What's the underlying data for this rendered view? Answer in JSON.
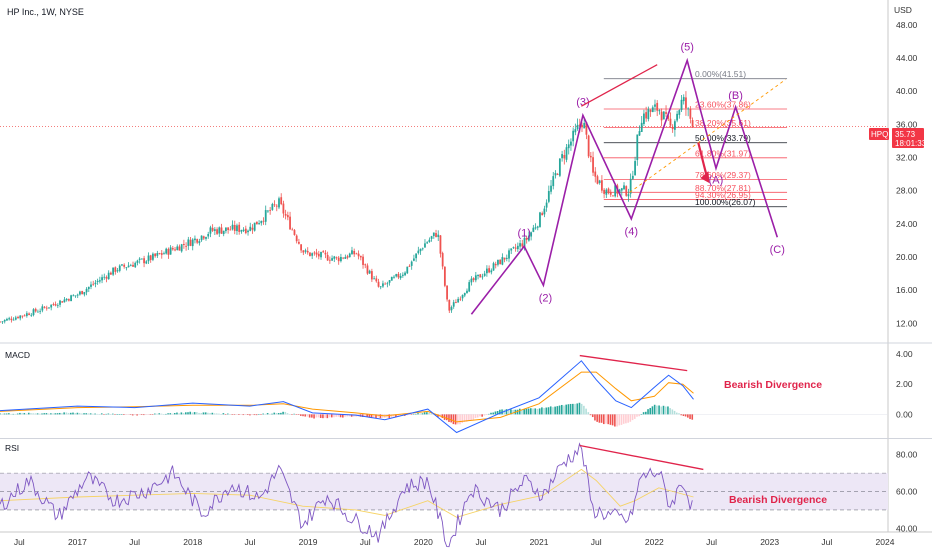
{
  "header": {
    "title": "HP Inc., 1W, NYSE",
    "currency": "USD"
  },
  "price_tag": {
    "symbol": "HPQ",
    "price": "35.73",
    "countdown": "18:01:33",
    "color": "#f23645"
  },
  "x_axis_labels": [
    "Jul",
    "2017",
    "Jul",
    "2018",
    "Jul",
    "2019",
    "Jul",
    "2020",
    "Jul",
    "2021",
    "Jul",
    "2022",
    "Jul",
    "2023",
    "Jul",
    "2024"
  ],
  "colors": {
    "up": "#26a69a",
    "down": "#ef5350",
    "wave": "#9b1fa8",
    "fib": "#f7525f",
    "macd_line": "#2962ff",
    "signal_line": "#ff9800",
    "rsi_line": "#7e57c2",
    "rsi_band": "#ede7f6",
    "divergence": "#e0244b"
  },
  "chart_data": [
    {
      "type": "candlestick",
      "title": "HP Inc., 1W, NYSE",
      "ylabel": "USD",
      "y_ticks": [
        12,
        16,
        20,
        24,
        28,
        32,
        36,
        40,
        44,
        48
      ],
      "y_tick_labels": [
        "12.00",
        "16.00",
        "20.00",
        "24.00",
        "28.00",
        "32.00",
        "36.00",
        "40.00",
        "44.00",
        "48.00"
      ],
      "ylim": [
        10,
        51
      ],
      "x_range": [
        "2016-05",
        "2024-01"
      ],
      "price_path": [
        [
          "2016-05-02",
          12.2
        ],
        [
          "2016-09-01",
          13.6
        ],
        [
          "2017-01-02",
          15.5
        ],
        [
          "2017-05-01",
          18.5
        ],
        [
          "2017-09-01",
          20.0
        ],
        [
          "2018-01-02",
          22.0
        ],
        [
          "2018-03-01",
          23.2
        ],
        [
          "2018-07-02",
          23.5
        ],
        [
          "2018-10-01",
          26.5
        ],
        [
          "2018-12-20",
          20.5
        ],
        [
          "2019-04-01",
          19.8
        ],
        [
          "2019-06-03",
          20.5
        ],
        [
          "2019-08-15",
          16.2
        ],
        [
          "2019-11-01",
          18.2
        ],
        [
          "2020-01-02",
          21.5
        ],
        [
          "2020-02-15",
          23.0
        ],
        [
          "2020-03-20",
          13.5
        ],
        [
          "2020-06-01",
          17.0
        ],
        [
          "2020-09-01",
          19.5
        ],
        [
          "2020-11-20",
          22.0
        ],
        [
          "2021-01-01",
          24.5
        ],
        [
          "2021-03-15",
          32.0
        ],
        [
          "2021-05-20",
          36.6
        ],
        [
          "2021-06-20",
          30.0
        ],
        [
          "2021-08-01",
          28.0
        ],
        [
          "2021-10-15",
          28.0
        ],
        [
          "2021-11-20",
          37.0
        ],
        [
          "2022-01-15",
          38.0
        ],
        [
          "2022-02-20",
          35.5
        ],
        [
          "2022-04-01",
          39.0
        ],
        [
          "2022-05-05",
          35.73
        ]
      ],
      "last_price": 35.73,
      "fib_levels": [
        {
          "ratio": "0.00%",
          "value": 41.51,
          "label": "0.00%(41.51)"
        },
        {
          "ratio": "23.60%",
          "value": 37.86,
          "label": "23.60%(37.86)"
        },
        {
          "ratio": "38.20%",
          "value": 35.61,
          "label": "38.20%(35.61)"
        },
        {
          "ratio": "50.00%",
          "value": 33.79,
          "label": "50.00%(33.79)"
        },
        {
          "ratio": "61.80%",
          "value": 31.97,
          "label": "61.80%(31.97)"
        },
        {
          "ratio": "78.60%",
          "value": 29.37,
          "label": "78.60%(29.37)"
        },
        {
          "ratio": "88.70%",
          "value": 27.81,
          "label": "88.70%(27.81)"
        },
        {
          "ratio": "94.30%",
          "value": 26.95,
          "label": "94.30%(26.95)"
        },
        {
          "ratio": "100.00%",
          "value": 26.07,
          "label": "100.00%(26.07)"
        }
      ],
      "elliott_waves": [
        {
          "label": "(1)",
          "date": "2020-11-15",
          "price": 21.3
        },
        {
          "label": "(2)",
          "date": "2021-01-15",
          "price": 16.6
        },
        {
          "label": "(3)",
          "date": "2021-05-20",
          "price": 37.1
        },
        {
          "label": "(4)",
          "date": "2021-10-20",
          "price": 24.6
        },
        {
          "label": "(5)",
          "date": "2022-04-15",
          "price": 43.7
        },
        {
          "label": "(A)",
          "date": "2022-07-15",
          "price": 30.7
        },
        {
          "label": "(B)",
          "date": "2022-09-15",
          "price": 38.1
        },
        {
          "label": "(C)",
          "date": "2023-01-25",
          "price": 22.4
        }
      ],
      "wave_path_start": {
        "date": "2020-06-01",
        "price": 13.1
      }
    },
    {
      "type": "line",
      "title": "MACD",
      "y_ticks": [
        0,
        2,
        4
      ],
      "y_tick_labels": [
        "0.00",
        "2.00",
        "4.00"
      ],
      "ylim": [
        -1.5,
        4.6
      ],
      "series": [
        {
          "points": [
            [
              "2016-05-01",
              0.25
            ],
            [
              "2017-01-01",
              0.55
            ],
            [
              "2017-07-01",
              0.45
            ],
            [
              "2018-01-01",
              0.75
            ],
            [
              "2018-07-01",
              0.55
            ],
            [
              "2018-10-15",
              0.85
            ],
            [
              "2019-01-15",
              0.1
            ],
            [
              "2019-06-01",
              -0.05
            ],
            [
              "2019-09-01",
              -0.35
            ],
            [
              "2020-01-15",
              0.35
            ],
            [
              "2020-04-15",
              -1.2
            ],
            [
              "2020-09-01",
              0.1
            ],
            [
              "2021-01-01",
              1.1
            ],
            [
              "2021-05-15",
              3.55
            ],
            [
              "2021-07-01",
              2.3
            ],
            [
              "2021-09-01",
              0.9
            ],
            [
              "2021-10-20",
              0.45
            ],
            [
              "2022-01-01",
              1.8
            ],
            [
              "2022-02-15",
              2.6
            ],
            [
              "2022-04-01",
              1.9
            ],
            [
              "2022-05-05",
              1.0
            ]
          ]
        },
        {
          "points": [
            [
              "2016-05-01",
              0.2
            ],
            [
              "2017-01-01",
              0.45
            ],
            [
              "2017-07-01",
              0.5
            ],
            [
              "2018-01-01",
              0.6
            ],
            [
              "2018-07-01",
              0.6
            ],
            [
              "2018-10-15",
              0.7
            ],
            [
              "2019-01-15",
              0.35
            ],
            [
              "2019-06-01",
              0.1
            ],
            [
              "2019-09-01",
              -0.1
            ],
            [
              "2020-01-15",
              0.2
            ],
            [
              "2020-04-15",
              -0.5
            ],
            [
              "2020-09-01",
              -0.2
            ],
            [
              "2021-01-01",
              0.7
            ],
            [
              "2021-05-15",
              2.8
            ],
            [
              "2021-07-01",
              2.8
            ],
            [
              "2021-09-01",
              1.7
            ],
            [
              "2021-10-20",
              0.9
            ],
            [
              "2022-01-01",
              1.2
            ],
            [
              "2022-02-15",
              2.1
            ],
            [
              "2022-04-01",
              2.0
            ],
            [
              "2022-05-05",
              1.4
            ]
          ]
        }
      ],
      "annotation": "Bearish Divergence"
    },
    {
      "type": "line",
      "title": "RSI",
      "y_ticks": [
        40,
        60,
        80
      ],
      "y_tick_labels": [
        "40.00",
        "60.00",
        "80.00"
      ],
      "ylim": [
        38,
        88
      ],
      "band": [
        50,
        70
      ],
      "series": [
        {
          "points": [
            [
              "2016-05-01",
              52
            ],
            [
              "2016-08-01",
              66
            ],
            [
              "2016-11-01",
              46
            ],
            [
              "2017-02-01",
              68
            ],
            [
              "2017-05-01",
              55
            ],
            [
              "2017-08-01",
              60
            ],
            [
              "2017-11-01",
              70
            ],
            [
              "2018-02-01",
              48
            ],
            [
              "2018-05-01",
              64
            ],
            [
              "2018-08-01",
              56
            ],
            [
              "2018-10-01",
              72
            ],
            [
              "2018-12-15",
              42
            ],
            [
              "2019-03-01",
              58
            ],
            [
              "2019-05-15",
              46
            ],
            [
              "2019-08-15",
              36
            ],
            [
              "2019-11-01",
              62
            ],
            [
              "2020-01-15",
              66
            ],
            [
              "2020-03-20",
              30
            ],
            [
              "2020-06-01",
              62
            ],
            [
              "2020-09-01",
              50
            ],
            [
              "2020-11-15",
              66
            ],
            [
              "2021-01-15",
              58
            ],
            [
              "2021-03-15",
              75
            ],
            [
              "2021-05-15",
              84
            ],
            [
              "2021-06-20",
              50
            ],
            [
              "2021-08-15",
              47
            ],
            [
              "2021-10-15",
              44
            ],
            [
              "2021-11-20",
              68
            ],
            [
              "2022-01-15",
              71
            ],
            [
              "2022-02-20",
              52
            ],
            [
              "2022-04-01",
              66
            ],
            [
              "2022-05-05",
              49
            ]
          ]
        },
        {
          "points": [
            [
              "2016-05-01",
              55
            ],
            [
              "2017-01-01",
              57
            ],
            [
              "2017-07-01",
              58
            ],
            [
              "2018-01-01",
              59
            ],
            [
              "2018-07-01",
              58
            ],
            [
              "2018-12-15",
              52
            ],
            [
              "2019-06-01",
              50
            ],
            [
              "2019-09-01",
              47
            ],
            [
              "2020-01-15",
              55
            ],
            [
              "2020-04-15",
              46
            ],
            [
              "2020-09-01",
              53
            ],
            [
              "2021-01-15",
              58
            ],
            [
              "2021-05-15",
              72
            ],
            [
              "2021-07-01",
              66
            ],
            [
              "2021-09-15",
              52
            ],
            [
              "2021-11-01",
              55
            ],
            [
              "2022-01-15",
              62
            ],
            [
              "2022-03-01",
              60
            ],
            [
              "2022-05-05",
              57
            ]
          ]
        }
      ],
      "annotation": "Bearish Divergence"
    }
  ]
}
